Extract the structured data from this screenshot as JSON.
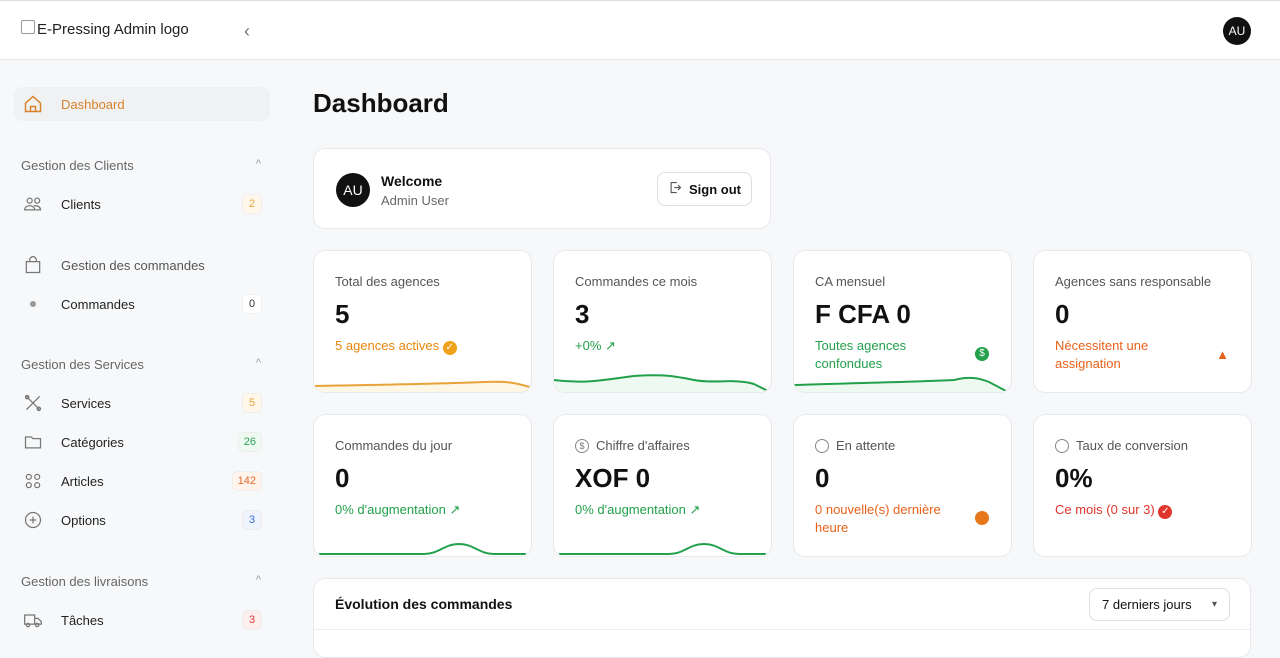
{
  "header": {
    "logo_alt": "E-Pressing Admin logo",
    "avatar": "AU"
  },
  "sidebar": {
    "dashboard": "Dashboard",
    "sections": [
      {
        "title": "Gestion des Clients",
        "items": [
          {
            "label": "Clients",
            "badge": "2",
            "color": "#e8a23a"
          }
        ]
      },
      {
        "title": "Gestion des commandes",
        "items": [
          {
            "label": "Commandes",
            "badge": "0",
            "color": "#333333"
          }
        ]
      },
      {
        "title": "Gestion des Services",
        "items": [
          {
            "label": "Services",
            "badge": "5",
            "color": "#e8a23a"
          },
          {
            "label": "Catégories",
            "badge": "26",
            "color": "#2f9e55"
          },
          {
            "label": "Articles",
            "badge": "142",
            "color": "#e06a2a"
          },
          {
            "label": "Options",
            "badge": "3",
            "color": "#3a6fd0"
          }
        ]
      },
      {
        "title": "Gestion des livraisons",
        "items": [
          {
            "label": "Tâches",
            "badge": "3",
            "color": "#d93a3a"
          }
        ]
      }
    ]
  },
  "main": {
    "title": "Dashboard",
    "welcome": {
      "avatar": "AU",
      "title": "Welcome",
      "subtitle": "Admin User",
      "sign_out": "Sign out"
    },
    "stats": [
      {
        "title": "Total des agences",
        "value": "5",
        "sub": "5 agences actives",
        "icon": "check-circle-icon"
      },
      {
        "title": "Commandes ce mois",
        "value": "3",
        "sub": "+0%",
        "icon": "trending-up-icon"
      },
      {
        "title": "CA mensuel",
        "value": "F CFA 0",
        "sub": "Toutes agences confondues",
        "icon": "dollar-circle-icon"
      },
      {
        "title": "Agences sans responsable",
        "value": "0",
        "sub": "Nécessitent une assignation",
        "icon": "warning-icon"
      },
      {
        "title": "Commandes du jour",
        "value": "0",
        "sub": "0% d'augmentation",
        "icon": "trending-up-icon"
      },
      {
        "title": "Chiffre d'affaires",
        "value": "XOF 0",
        "sub": "0% d'augmentation",
        "icon": "trending-up-icon"
      },
      {
        "title": "En attente",
        "value": "0",
        "sub": "0 nouvelle(s) dernière heure",
        "icon": "clock-icon"
      },
      {
        "title": "Taux de conversion",
        "value": "0%",
        "sub": "Ce mois (0 sur 3)",
        "icon": "check-circle-icon"
      }
    ],
    "evolution": {
      "title": "Évolution des commandes",
      "period": "7 derniers jours"
    }
  },
  "colors": {
    "accent": "#d9822b",
    "green": "#22a04b",
    "orange": "#e8860b",
    "red": "#e0352b"
  }
}
